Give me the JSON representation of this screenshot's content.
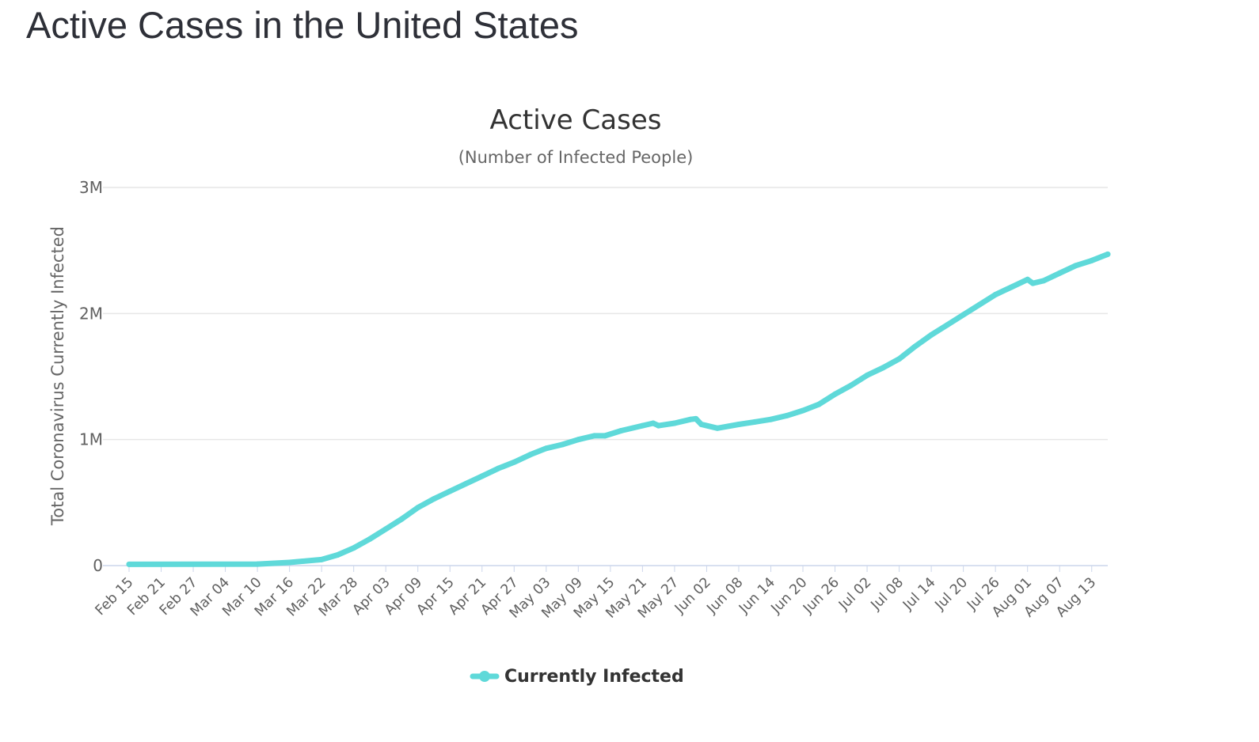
{
  "page": {
    "heading": "Active Cases in the United States"
  },
  "chart_data": {
    "type": "line",
    "title": "Active Cases",
    "subtitle": "(Number of Infected People)",
    "xlabel": "",
    "ylabel": "Total Coronavirus Currently Infected",
    "ylim": [
      0,
      3000000
    ],
    "yticks": [
      {
        "value": 0,
        "label": "0"
      },
      {
        "value": 1000000,
        "label": "1M"
      },
      {
        "value": 2000000,
        "label": "2M"
      },
      {
        "value": 3000000,
        "label": "3M"
      }
    ],
    "xlim": [
      "2020-02-15",
      "2020-08-16"
    ],
    "xticks": [
      {
        "date": "2020-02-15",
        "label": "Feb 15"
      },
      {
        "date": "2020-02-21",
        "label": "Feb 21"
      },
      {
        "date": "2020-02-27",
        "label": "Feb 27"
      },
      {
        "date": "2020-03-04",
        "label": "Mar 04"
      },
      {
        "date": "2020-03-10",
        "label": "Mar 10"
      },
      {
        "date": "2020-03-16",
        "label": "Mar 16"
      },
      {
        "date": "2020-03-22",
        "label": "Mar 22"
      },
      {
        "date": "2020-03-28",
        "label": "Mar 28"
      },
      {
        "date": "2020-04-03",
        "label": "Apr 03"
      },
      {
        "date": "2020-04-09",
        "label": "Apr 09"
      },
      {
        "date": "2020-04-15",
        "label": "Apr 15"
      },
      {
        "date": "2020-04-21",
        "label": "Apr 21"
      },
      {
        "date": "2020-04-27",
        "label": "Apr 27"
      },
      {
        "date": "2020-05-03",
        "label": "May 03"
      },
      {
        "date": "2020-05-09",
        "label": "May 09"
      },
      {
        "date": "2020-05-15",
        "label": "May 15"
      },
      {
        "date": "2020-05-21",
        "label": "May 21"
      },
      {
        "date": "2020-05-27",
        "label": "May 27"
      },
      {
        "date": "2020-06-02",
        "label": "Jun 02"
      },
      {
        "date": "2020-06-08",
        "label": "Jun 08"
      },
      {
        "date": "2020-06-14",
        "label": "Jun 14"
      },
      {
        "date": "2020-06-20",
        "label": "Jun 20"
      },
      {
        "date": "2020-06-26",
        "label": "Jun 26"
      },
      {
        "date": "2020-07-02",
        "label": "Jul 02"
      },
      {
        "date": "2020-07-08",
        "label": "Jul 08"
      },
      {
        "date": "2020-07-14",
        "label": "Jul 14"
      },
      {
        "date": "2020-07-20",
        "label": "Jul 20"
      },
      {
        "date": "2020-07-26",
        "label": "Jul 26"
      },
      {
        "date": "2020-08-01",
        "label": "Aug 01"
      },
      {
        "date": "2020-08-07",
        "label": "Aug 07"
      },
      {
        "date": "2020-08-13",
        "label": "Aug 13"
      }
    ],
    "grid": true,
    "legend": "bottom-center",
    "series": [
      {
        "name": "Currently Infected",
        "color": "#5fd9d9",
        "points": [
          [
            "2020-02-15",
            10000
          ],
          [
            "2020-03-10",
            12000
          ],
          [
            "2020-03-16",
            25000
          ],
          [
            "2020-03-22",
            48000
          ],
          [
            "2020-03-25",
            85000
          ],
          [
            "2020-03-28",
            140000
          ],
          [
            "2020-03-31",
            210000
          ],
          [
            "2020-04-03",
            290000
          ],
          [
            "2020-04-06",
            370000
          ],
          [
            "2020-04-09",
            460000
          ],
          [
            "2020-04-12",
            530000
          ],
          [
            "2020-04-15",
            590000
          ],
          [
            "2020-04-18",
            650000
          ],
          [
            "2020-04-21",
            710000
          ],
          [
            "2020-04-24",
            770000
          ],
          [
            "2020-04-27",
            820000
          ],
          [
            "2020-04-30",
            880000
          ],
          [
            "2020-05-03",
            930000
          ],
          [
            "2020-05-06",
            960000
          ],
          [
            "2020-05-09",
            1000000
          ],
          [
            "2020-05-12",
            1030000
          ],
          [
            "2020-05-14",
            1030000
          ],
          [
            "2020-05-17",
            1070000
          ],
          [
            "2020-05-21",
            1110000
          ],
          [
            "2020-05-23",
            1130000
          ],
          [
            "2020-05-24",
            1110000
          ],
          [
            "2020-05-27",
            1130000
          ],
          [
            "2020-05-30",
            1160000
          ],
          [
            "2020-05-31",
            1165000
          ],
          [
            "2020-06-01",
            1120000
          ],
          [
            "2020-06-04",
            1090000
          ],
          [
            "2020-06-08",
            1120000
          ],
          [
            "2020-06-11",
            1140000
          ],
          [
            "2020-06-14",
            1160000
          ],
          [
            "2020-06-17",
            1190000
          ],
          [
            "2020-06-20",
            1230000
          ],
          [
            "2020-06-23",
            1280000
          ],
          [
            "2020-06-26",
            1360000
          ],
          [
            "2020-06-29",
            1430000
          ],
          [
            "2020-07-02",
            1510000
          ],
          [
            "2020-07-05",
            1570000
          ],
          [
            "2020-07-08",
            1640000
          ],
          [
            "2020-07-11",
            1740000
          ],
          [
            "2020-07-14",
            1830000
          ],
          [
            "2020-07-17",
            1910000
          ],
          [
            "2020-07-20",
            1990000
          ],
          [
            "2020-07-23",
            2070000
          ],
          [
            "2020-07-26",
            2150000
          ],
          [
            "2020-07-29",
            2210000
          ],
          [
            "2020-08-01",
            2270000
          ],
          [
            "2020-08-02",
            2240000
          ],
          [
            "2020-08-04",
            2260000
          ],
          [
            "2020-08-07",
            2320000
          ],
          [
            "2020-08-10",
            2380000
          ],
          [
            "2020-08-13",
            2420000
          ],
          [
            "2020-08-16",
            2470000
          ]
        ]
      }
    ]
  }
}
